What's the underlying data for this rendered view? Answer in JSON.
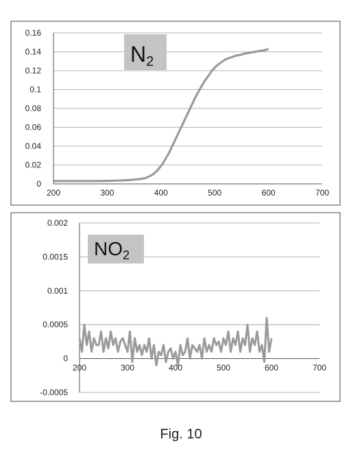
{
  "figure_caption": "Fig. 10",
  "chart_data": [
    {
      "type": "line",
      "title": "N",
      "title_sub": "2",
      "xlabel": "",
      "ylabel": "",
      "xlim": [
        200,
        700
      ],
      "ylim": [
        0,
        0.16
      ],
      "xticks": [
        "200",
        "300",
        "400",
        "500",
        "600",
        "700"
      ],
      "yticks": [
        "0",
        "0.02",
        "0.04",
        "0.06",
        "0.08",
        "0.1",
        "0.12",
        "0.14",
        "0.16"
      ],
      "grid": true,
      "color": "#9a9a9a",
      "series": [
        {
          "x": [
            200,
            220,
            240,
            260,
            280,
            300,
            320,
            340,
            350,
            360,
            370,
            375,
            380,
            385,
            390,
            395,
            400,
            405,
            410,
            415,
            420,
            425,
            430,
            435,
            440,
            445,
            450,
            455,
            460,
            465,
            470,
            475,
            480,
            485,
            490,
            495,
            500,
            505,
            510,
            515,
            520,
            525,
            530,
            535,
            540,
            545,
            550,
            555,
            560,
            565,
            570,
            575,
            580,
            585,
            590,
            595,
            600
          ],
          "y": [
            0.003,
            0.003,
            0.003,
            0.003,
            0.003,
            0.0032,
            0.0035,
            0.004,
            0.0045,
            0.005,
            0.006,
            0.007,
            0.0085,
            0.01,
            0.0125,
            0.0155,
            0.019,
            0.023,
            0.028,
            0.033,
            0.039,
            0.045,
            0.051,
            0.057,
            0.063,
            0.069,
            0.075,
            0.081,
            0.087,
            0.093,
            0.098,
            0.103,
            0.108,
            0.112,
            0.116,
            0.12,
            0.123,
            0.126,
            0.128,
            0.13,
            0.132,
            0.133,
            0.134,
            0.135,
            0.136,
            0.1365,
            0.137,
            0.138,
            0.1385,
            0.139,
            0.1395,
            0.14,
            0.1405,
            0.141,
            0.1415,
            0.142,
            0.143
          ]
        }
      ]
    },
    {
      "type": "line",
      "title": "NO",
      "title_sub": "2",
      "xlabel": "",
      "ylabel": "",
      "xlim": [
        200,
        700
      ],
      "ylim": [
        -0.0005,
        0.002
      ],
      "xticks": [
        "200",
        "300",
        "400",
        "500",
        "600",
        "700"
      ],
      "yticks": [
        "-0.0005",
        "0",
        "0.0005",
        "0.001",
        "0.0015",
        "0.002"
      ],
      "grid": true,
      "color": "#9a9a9a",
      "series": [
        {
          "x": [
            200,
            205,
            210,
            215,
            220,
            225,
            230,
            235,
            240,
            245,
            250,
            255,
            260,
            265,
            270,
            275,
            280,
            285,
            290,
            295,
            300,
            305,
            310,
            315,
            320,
            325,
            330,
            335,
            340,
            345,
            350,
            355,
            360,
            365,
            370,
            375,
            380,
            385,
            390,
            395,
            400,
            405,
            410,
            415,
            420,
            425,
            430,
            435,
            440,
            445,
            450,
            455,
            460,
            465,
            470,
            475,
            480,
            485,
            490,
            495,
            500,
            505,
            510,
            515,
            520,
            525,
            530,
            535,
            540,
            545,
            550,
            555,
            560,
            565,
            570,
            575,
            580,
            585,
            590,
            595,
            600
          ],
          "y": [
            0.0003,
            0.0001,
            0.0005,
            0.0002,
            0.0004,
            0.0001,
            0.0003,
            0.0002,
            0.0002,
            0.0004,
            0.0001,
            0.0003,
            0.00015,
            0.0004,
            0.0002,
            0.0003,
            0.0001,
            0.00025,
            0.0003,
            0.0002,
            0.0001,
            0.0004,
            -5e-05,
            0.0003,
            0.0001,
            0.0002,
            5e-05,
            0.0002,
            0.0001,
            0.0003,
            0.0,
            0.0002,
            -0.0001,
            0.0001,
            5e-05,
            0.0002,
            -5e-05,
            0.0001,
            0.00015,
            0.0,
            0.0001,
            -0.0001,
            0.0002,
            5e-05,
            0.0001,
            0.0003,
            0.0,
            0.0002,
            0.00015,
            0.0001,
            0.0002,
            0.0,
            0.0003,
            0.0001,
            0.0002,
            0.0001,
            0.0003,
            0.0002,
            0.00025,
            0.0001,
            0.0003,
            0.0002,
            0.0004,
            0.0001,
            0.0003,
            0.0002,
            0.0004,
            0.0001,
            0.0003,
            0.0002,
            0.0005,
            0.0001,
            0.0003,
            0.0002,
            0.0004,
            0.0001,
            0.0002,
            -5e-05,
            0.0006,
            0.0001,
            0.0003
          ]
        }
      ]
    }
  ]
}
